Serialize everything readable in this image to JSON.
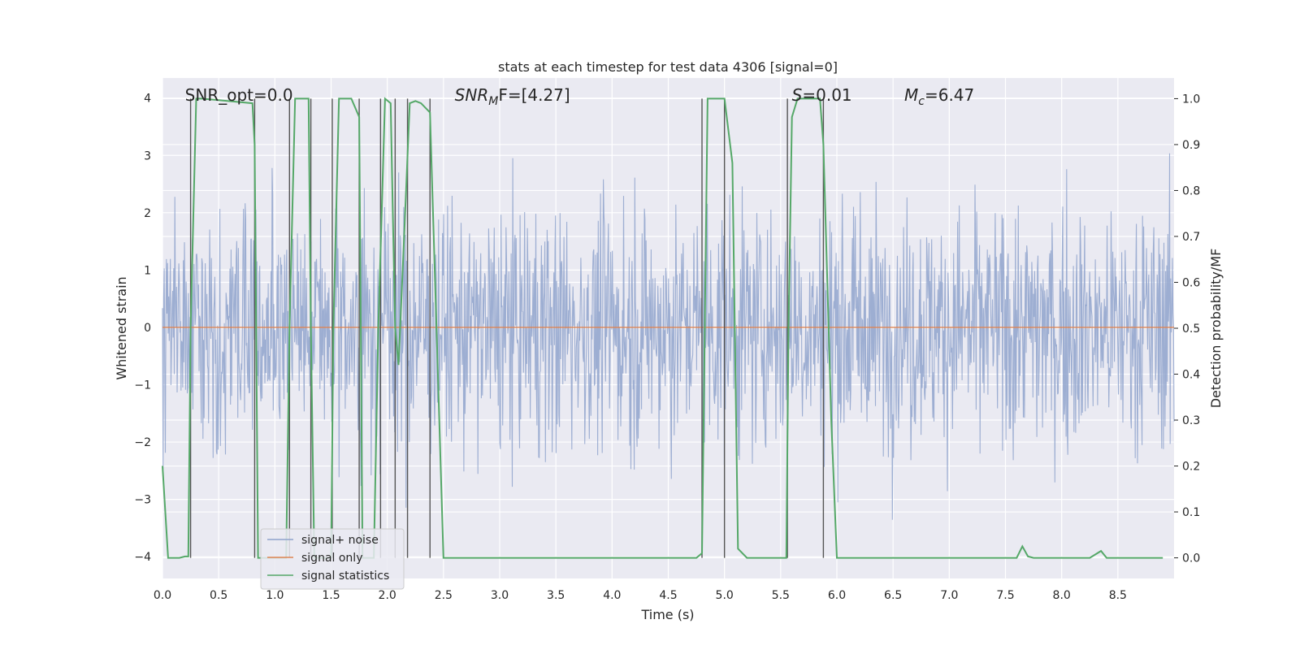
{
  "chart_data": {
    "type": "line",
    "title": "stats at each timestep for test data 4306 [signal=0]",
    "xlabel": "Time (s)",
    "ylabel_left": "Whitened strain",
    "ylabel_right": "Detection probability/MF",
    "xlim": [
      0,
      9.0
    ],
    "ylim_left": [
      -4.38,
      4.35
    ],
    "ylim_right": [
      -0.045,
      1.045
    ],
    "grid": true,
    "x_ticks": [
      0.0,
      0.5,
      1.0,
      1.5,
      2.0,
      2.5,
      3.0,
      3.5,
      4.0,
      4.5,
      5.0,
      5.5,
      6.0,
      6.5,
      7.0,
      7.5,
      8.0,
      8.5
    ],
    "x_tick_labels": [
      "0.0",
      "0.5",
      "1.0",
      "1.5",
      "2.0",
      "2.5",
      "3.0",
      "3.5",
      "4.0",
      "4.5",
      "5.0",
      "5.5",
      "6.0",
      "6.5",
      "7.0",
      "7.5",
      "8.0",
      "8.5"
    ],
    "y_left_ticks": [
      4,
      3,
      2,
      1,
      0,
      -1,
      -2,
      -3,
      -4
    ],
    "y_left_tick_labels": [
      "4",
      "3",
      "2",
      "1",
      "0",
      "−1",
      "−2",
      "−3",
      "−4"
    ],
    "y_right_ticks": [
      1.0,
      0.9,
      0.8,
      0.7,
      0.6,
      0.5,
      0.4,
      0.3,
      0.2,
      0.1,
      0.0
    ],
    "y_right_tick_labels": [
      "1.0",
      "0.9",
      "0.8",
      "0.7",
      "0.6",
      "0.5",
      "0.4",
      "0.3",
      "0.2",
      "0.1",
      "0.0"
    ],
    "annotations": [
      {
        "id": "snr-opt",
        "text": "SNR_opt=0.0",
        "x": 0.2
      },
      {
        "id": "snr-mf",
        "prefix": "SNR",
        "sub": "M",
        "suffix": "F=[4.27]",
        "x": 2.6
      },
      {
        "id": "s-stat",
        "prefix": "S",
        "sub": "",
        "suffix": "=0.01",
        "x": 5.6
      },
      {
        "id": "mc",
        "prefix": "M",
        "sub": "c",
        "suffix": "=6.47",
        "x": 6.6
      }
    ],
    "series": [
      {
        "name": "signal+ noise",
        "color": "#8fa3cc",
        "axis": "left",
        "kind": "noise",
        "amplitude_std": 1.0,
        "n_samples": 1800,
        "seed": 4306
      },
      {
        "name": "signal only",
        "color": "#dd8452",
        "axis": "left",
        "kind": "constant",
        "value": 0.0
      },
      {
        "name": "signal statistics",
        "color": "#55a868",
        "axis": "right",
        "x": [
          0.0,
          0.05,
          0.1,
          0.15,
          0.2,
          0.23,
          0.25,
          0.3,
          0.35,
          0.8,
          0.82,
          0.85,
          1.1,
          1.13,
          1.18,
          1.3,
          1.32,
          1.35,
          1.5,
          1.52,
          1.57,
          1.68,
          1.75,
          1.78,
          1.88,
          1.92,
          1.98,
          2.03,
          2.07,
          2.1,
          2.15,
          2.2,
          2.25,
          2.3,
          2.38,
          2.5,
          4.75,
          4.8,
          4.85,
          4.95,
          5.0,
          5.07,
          5.12,
          5.2,
          5.55,
          5.57,
          5.6,
          5.65,
          5.85,
          5.88,
          5.95,
          6.0,
          7.6,
          7.65,
          7.7,
          7.75,
          8.25,
          8.35,
          8.4,
          8.9
        ],
        "y": [
          0.2,
          0.0,
          0.0,
          0.0,
          0.003,
          0.003,
          0.5,
          1.0,
          1.0,
          0.99,
          0.9,
          0.0,
          0.0,
          0.5,
          1.0,
          1.0,
          0.5,
          0.0,
          0.0,
          0.5,
          1.0,
          1.0,
          0.96,
          0.0,
          0.0,
          0.5,
          1.0,
          0.99,
          0.5,
          0.42,
          0.7,
          0.99,
          0.995,
          0.99,
          0.97,
          0.0,
          0.0,
          0.01,
          1.0,
          1.0,
          1.0,
          0.86,
          0.02,
          0.0,
          0.0,
          0.5,
          0.96,
          1.0,
          1.0,
          0.9,
          0.3,
          0.0,
          0.0,
          0.025,
          0.003,
          0.0,
          0.0,
          0.015,
          0.0,
          0.0
        ]
      }
    ],
    "vertical_markers": [
      0.25,
      0.82,
      1.13,
      1.32,
      1.51,
      1.75,
      1.94,
      2.07,
      2.18,
      2.38,
      4.8,
      5.0,
      5.56,
      5.88
    ],
    "legend": {
      "placement": "lower-left",
      "entries": [
        "signal+ noise",
        "signal only",
        "signal statistics"
      ]
    }
  }
}
